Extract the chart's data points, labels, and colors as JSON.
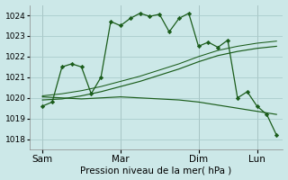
{
  "bg_color": "#cce8e8",
  "grid_color": "#aacccc",
  "line_color": "#1a5c1a",
  "xlabel": "Pression niveau de la mer( hPa )",
  "ylim": [
    1017.5,
    1024.5
  ],
  "yticks": [
    1018,
    1019,
    1020,
    1021,
    1022,
    1023,
    1024
  ],
  "xtick_labels": [
    "Sam",
    "Mar",
    "Dim",
    "Lun"
  ],
  "xtick_positions": [
    0,
    48,
    96,
    132
  ],
  "xlim": [
    -8,
    148
  ],
  "line1_x": [
    0,
    6,
    12,
    18,
    24,
    30,
    36,
    42,
    48,
    54,
    60,
    66,
    72,
    78,
    84,
    90,
    96,
    102,
    108,
    114,
    120,
    126,
    132,
    138,
    144
  ],
  "line1_y": [
    1019.6,
    1019.8,
    1021.5,
    1021.65,
    1021.5,
    1020.2,
    1021.0,
    1023.7,
    1023.5,
    1023.85,
    1024.1,
    1023.95,
    1024.05,
    1023.2,
    1023.85,
    1024.1,
    1022.5,
    1022.7,
    1022.45,
    1022.8,
    1020.0,
    1020.3,
    1019.6,
    1019.2,
    1018.2
  ],
  "line2_x": [
    0,
    12,
    24,
    36,
    48,
    60,
    72,
    84,
    96,
    108,
    120,
    132,
    144
  ],
  "line2_y": [
    1019.9,
    1019.95,
    1020.1,
    1020.3,
    1020.55,
    1020.8,
    1021.1,
    1021.4,
    1021.75,
    1022.05,
    1022.25,
    1022.4,
    1022.5
  ],
  "line2b_y": [
    1020.1,
    1020.2,
    1020.35,
    1020.55,
    1020.8,
    1021.05,
    1021.35,
    1021.65,
    1022.0,
    1022.3,
    1022.5,
    1022.65,
    1022.75
  ],
  "line3_x": [
    0,
    12,
    24,
    36,
    48,
    60,
    72,
    84,
    96,
    108,
    120,
    132,
    144
  ],
  "line3_y": [
    1020.05,
    1020.0,
    1019.95,
    1020.0,
    1020.05,
    1020.0,
    1019.95,
    1019.9,
    1019.8,
    1019.65,
    1019.5,
    1019.35,
    1019.2
  ],
  "vline_color": "#999999",
  "xlabel_fontsize": 7.5,
  "ytick_fontsize": 6.5,
  "xtick_fontsize": 7.5
}
